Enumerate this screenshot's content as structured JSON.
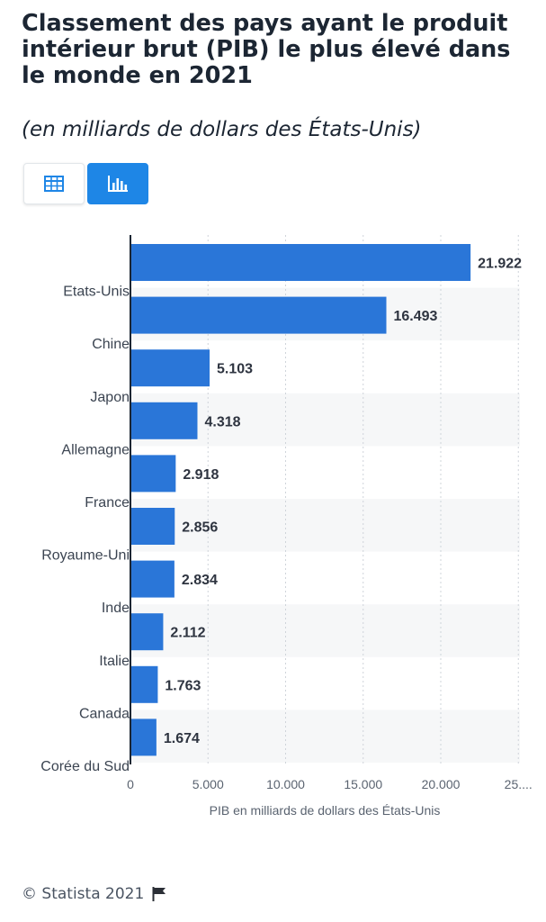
{
  "header": {
    "title": "Classement des pays ayant le produit intérieur brut (PIB) le plus élevé dans le monde en 2021",
    "subtitle": "(en milliards de dollars des États-Unis)"
  },
  "view_toggle": {
    "table_icon": "table-icon",
    "chart_icon": "bar-chart-icon",
    "active": "chart",
    "active_color": "#1e86e6"
  },
  "chart_data": {
    "type": "bar",
    "orientation": "horizontal",
    "categories": [
      "Etats-Unis",
      "Chine",
      "Japon",
      "Allemagne",
      "France",
      "Royaume-Uni",
      "Inde",
      "Italie",
      "Canada",
      "Corée du Sud"
    ],
    "category_labels": [
      "Etats-Unis",
      "Chine",
      "Japon",
      "Allemagne",
      "France",
      "Royaume-Uni",
      "Inde",
      "Italie",
      "Canada",
      "Corée du Sud"
    ],
    "values": [
      21922,
      16493,
      5103,
      4318,
      2918,
      2856,
      2834,
      2112,
      1763,
      1674
    ],
    "value_labels": [
      "21.922",
      "16.493",
      "5.103",
      "4.318",
      "2.918",
      "2.856",
      "2.834",
      "2.112",
      "1.763",
      "1.674"
    ],
    "xlim": [
      0,
      25000
    ],
    "xticks": [
      0,
      5000,
      10000,
      15000,
      20000,
      25000
    ],
    "xtick_labels": [
      "0",
      "5.000",
      "10.000",
      "15.000",
      "20.000",
      "25...."
    ],
    "xlabel": "PIB en milliards de dollars des États-Unis",
    "ylabel": "",
    "bar_color": "#2a76d8",
    "grid": "vertical dotted",
    "legend": "none"
  },
  "footer": {
    "copyright": "© Statista 2021",
    "flag_icon": "flag-icon"
  }
}
